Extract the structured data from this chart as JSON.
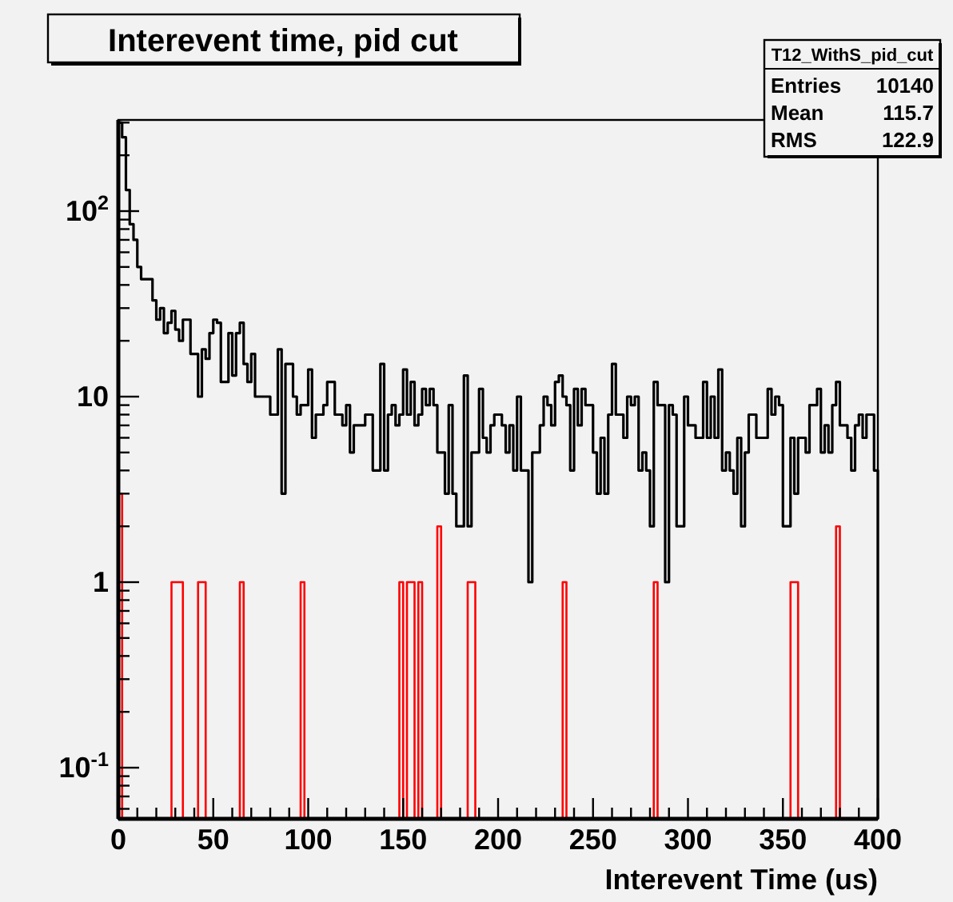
{
  "chart_data": {
    "type": "histogram",
    "title": "Interevent time, pid cut",
    "xlabel": "Interevent Time (us)",
    "annotations": [
      "T12_WithS_pid_cut",
      "Entries",
      "10140",
      "Mean",
      "115.7",
      "RMS",
      "122.9"
    ],
    "bins": [
      0,
      2,
      4,
      6,
      8,
      10,
      12,
      14,
      16,
      18,
      20,
      22,
      24,
      26,
      28,
      30,
      32,
      34,
      36,
      38,
      40,
      42,
      44,
      46,
      48,
      50,
      52,
      54,
      56,
      58,
      60,
      62,
      64,
      66,
      68,
      70,
      72,
      74,
      76,
      78,
      80,
      82,
      84,
      86,
      88,
      90,
      92,
      94,
      96,
      98,
      100,
      102,
      104,
      106,
      108,
      110,
      112,
      114,
      116,
      118,
      120,
      122,
      124,
      126,
      128,
      130,
      132,
      134,
      136,
      138,
      140,
      142,
      144,
      146,
      148,
      150,
      152,
      154,
      156,
      158,
      160,
      162,
      164,
      166,
      168,
      170,
      172,
      174,
      176,
      178,
      180,
      182,
      184,
      186,
      188,
      190,
      192,
      194,
      196,
      198,
      200,
      202,
      204,
      206,
      208,
      210,
      212,
      214,
      216,
      218,
      220,
      222,
      224,
      226,
      228,
      230,
      232,
      234,
      236,
      238,
      240,
      242,
      244,
      246,
      248,
      250,
      252,
      254,
      256,
      258,
      260,
      262,
      264,
      266,
      268,
      270,
      272,
      274,
      276,
      278,
      280,
      282,
      284,
      286,
      288,
      290,
      292,
      294,
      296,
      298,
      300,
      302,
      304,
      306,
      308,
      310,
      312,
      314,
      316,
      318,
      320,
      322,
      324,
      326,
      328,
      330,
      332,
      334,
      336,
      338,
      340,
      342,
      344,
      346,
      348,
      350,
      352,
      354,
      356,
      358,
      360,
      362,
      364,
      366,
      368,
      370,
      372,
      374,
      376,
      378,
      380,
      382,
      384,
      386,
      388,
      390,
      392,
      394,
      396,
      398,
      400
    ],
    "series": [
      {
        "color": "#000000",
        "values": [
          300,
          250,
          130,
          85,
          70,
          50,
          43,
          43,
          43,
          33,
          26,
          30,
          22,
          25,
          29,
          23,
          20,
          26,
          26,
          17,
          17,
          10,
          18,
          16,
          22,
          26,
          25,
          12,
          12,
          22,
          13,
          22,
          25,
          15,
          12,
          17,
          10,
          10,
          10,
          10,
          8,
          8,
          18,
          3,
          15,
          15,
          10,
          8,
          9,
          9,
          14,
          6,
          8,
          8,
          9,
          12,
          12,
          8,
          8,
          7,
          9,
          5,
          7,
          7,
          7,
          8,
          8,
          4,
          4,
          15,
          4,
          8,
          9,
          7,
          8,
          14,
          8,
          12,
          7,
          8,
          11,
          9,
          11,
          9,
          5,
          5,
          3,
          9,
          3,
          2,
          2,
          13,
          2,
          5,
          5,
          11,
          6,
          5,
          7,
          8,
          8,
          7,
          5,
          7,
          4,
          10,
          4,
          4,
          1,
          5,
          5,
          7,
          10,
          9,
          7,
          12,
          13,
          10,
          9,
          4,
          11,
          7,
          11,
          9,
          9,
          5,
          3,
          6,
          3,
          8,
          15,
          8,
          8,
          6,
          10,
          9,
          10,
          4,
          5,
          4,
          2,
          12,
          9,
          9,
          1,
          9,
          8,
          2,
          2,
          10,
          7,
          7,
          6,
          6,
          12,
          6,
          10,
          6,
          14,
          4,
          5,
          4,
          3,
          6,
          2,
          5,
          8,
          8,
          6,
          6,
          6,
          11,
          8,
          10,
          9,
          2,
          2,
          6,
          3,
          6,
          6,
          5,
          9,
          9,
          11,
          5,
          7,
          5,
          9,
          12,
          7,
          7,
          6,
          4,
          7,
          8,
          6,
          8,
          8,
          4
        ]
      },
      {
        "color": "#ff0000",
        "values": [
          3,
          null,
          null,
          null,
          null,
          null,
          null,
          null,
          null,
          null,
          null,
          null,
          null,
          null,
          1,
          1,
          1,
          null,
          null,
          null,
          null,
          1,
          1,
          null,
          null,
          null,
          null,
          null,
          null,
          null,
          null,
          null,
          1,
          null,
          null,
          null,
          null,
          null,
          null,
          null,
          null,
          null,
          null,
          null,
          null,
          null,
          null,
          null,
          1,
          null,
          null,
          null,
          null,
          null,
          null,
          null,
          null,
          null,
          null,
          null,
          null,
          null,
          null,
          null,
          null,
          null,
          null,
          null,
          null,
          null,
          null,
          null,
          null,
          null,
          1,
          null,
          1,
          1,
          null,
          1,
          null,
          null,
          null,
          null,
          2,
          null,
          null,
          null,
          null,
          null,
          null,
          null,
          1,
          1,
          null,
          null,
          null,
          null,
          null,
          null,
          null,
          null,
          null,
          null,
          null,
          null,
          null,
          null,
          null,
          null,
          null,
          null,
          null,
          null,
          null,
          null,
          null,
          1,
          null,
          null,
          null,
          null,
          null,
          null,
          null,
          null,
          null,
          null,
          null,
          null,
          null,
          null,
          null,
          null,
          null,
          null,
          null,
          null,
          null,
          null,
          null,
          1,
          null,
          null,
          null,
          null,
          null,
          null,
          null,
          null,
          null,
          null,
          null,
          null,
          null,
          null,
          null,
          null,
          null,
          null,
          null,
          null,
          null,
          null,
          null,
          null,
          null,
          null,
          null,
          null,
          null,
          null,
          null,
          null,
          null,
          null,
          null,
          1,
          1,
          null,
          null,
          null,
          null,
          null,
          null,
          null,
          null,
          null,
          null,
          2,
          null,
          null,
          null,
          null,
          null,
          null,
          null,
          null,
          null,
          null
        ]
      }
    ],
    "xlim": [
      0,
      400
    ],
    "xticks": [
      0,
      {
        "value": 10,
        "label": null
      },
      {
        "value": 20,
        "label": null
      },
      {
        "value": 30,
        "label": null
      },
      {
        "value": 40,
        "label": null
      },
      50,
      {
        "value": 60,
        "label": null
      },
      {
        "value": 70,
        "label": null
      },
      {
        "value": 80,
        "label": null
      },
      {
        "value": 90,
        "label": null
      },
      100,
      {
        "value": 110,
        "label": null
      },
      {
        "value": 120,
        "label": null
      },
      {
        "value": 130,
        "label": null
      },
      {
        "value": 140,
        "label": null
      },
      150,
      {
        "value": 160,
        "label": null
      },
      {
        "value": 170,
        "label": null
      },
      {
        "value": 180,
        "label": null
      },
      {
        "value": 190,
        "label": null
      },
      200,
      {
        "value": 210,
        "label": null
      },
      {
        "value": 220,
        "label": null
      },
      {
        "value": 230,
        "label": null
      },
      {
        "value": 240,
        "label": null
      },
      250,
      {
        "value": 260,
        "label": null
      },
      {
        "value": 270,
        "label": null
      },
      {
        "value": 280,
        "label": null
      },
      {
        "value": 290,
        "label": null
      },
      300,
      {
        "value": 310,
        "label": null
      },
      {
        "value": 320,
        "label": null
      },
      {
        "value": 330,
        "label": null
      },
      {
        "value": 340,
        "label": null
      },
      350,
      {
        "value": 360,
        "label": null
      },
      {
        "value": 370,
        "label": null
      },
      {
        "value": 380,
        "label": null
      },
      {
        "value": 390,
        "label": null
      },
      400
    ],
    "ylim": [
      0.053,
      310
    ],
    "yticks": [
      {
        "value": 0.06,
        "label": null
      },
      {
        "value": 0.07,
        "label": null
      },
      {
        "value": 0.08,
        "label": null
      },
      {
        "value": 0.09,
        "label": null
      },
      {
        "value": 0.1,
        "label": "10$^{-1}$"
      },
      {
        "value": 0.2,
        "label": null
      },
      {
        "value": 0.3,
        "label": null
      },
      {
        "value": 0.4,
        "label": null
      },
      {
        "value": 0.5,
        "label": null
      },
      {
        "value": 0.6,
        "label": null
      },
      {
        "value": 0.7,
        "label": null
      },
      {
        "value": 0.8,
        "label": null
      },
      {
        "value": 0.9,
        "label": null
      },
      1,
      {
        "value": 2,
        "label": null
      },
      {
        "value": 3,
        "label": null
      },
      {
        "value": 4,
        "label": null
      },
      {
        "value": 5,
        "label": null
      },
      {
        "value": 6,
        "label": null
      },
      {
        "value": 7,
        "label": null
      },
      {
        "value": 8,
        "label": null
      },
      {
        "value": 9,
        "label": null
      },
      10,
      {
        "value": 20,
        "label": null
      },
      {
        "value": 30,
        "label": null
      },
      {
        "value": 40,
        "label": null
      },
      {
        "value": 50,
        "label": null
      },
      {
        "value": 60,
        "label": null
      },
      {
        "value": 70,
        "label": null
      },
      {
        "value": 80,
        "label": null
      },
      {
        "value": 90,
        "label": null
      },
      {
        "value": 100,
        "label": "10$^{2}$"
      },
      {
        "value": 200,
        "label": null
      },
      {
        "value": 300,
        "label": null
      }
    ],
    "log": true,
    "grid": false
  }
}
